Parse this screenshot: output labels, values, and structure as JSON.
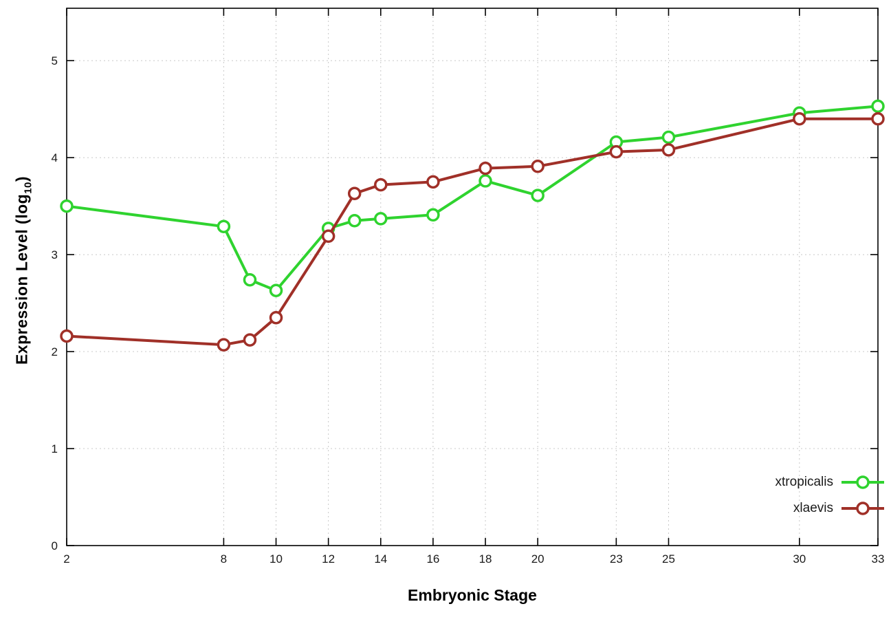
{
  "chart_data": {
    "type": "line",
    "title": "",
    "xlabel": "Embryonic Stage",
    "ylabel_main": "Expression Level (log",
    "ylabel_sub": "10",
    "ylabel_end": ")",
    "x": [
      2,
      8,
      9,
      10,
      12,
      13,
      14,
      16,
      18,
      20,
      23,
      25,
      30,
      33
    ],
    "xticks": [
      2,
      8,
      10,
      12,
      14,
      16,
      18,
      20,
      23,
      25,
      30,
      33
    ],
    "yticks": [
      0,
      1,
      2,
      3,
      4,
      5
    ],
    "xlim": [
      2,
      33
    ],
    "ylim": [
      0,
      5.54
    ],
    "grid": true,
    "legend_position": "bottom-right",
    "colors": {
      "grid": "#c8c8c8",
      "border": "#000000",
      "tick_text": "#1a1a1a"
    },
    "series": [
      {
        "name": "xtropicalis",
        "color": "#2fd32f",
        "values": [
          3.5,
          3.29,
          2.74,
          2.63,
          3.27,
          3.35,
          3.37,
          3.41,
          3.76,
          3.61,
          4.16,
          4.21,
          4.46,
          4.53
        ]
      },
      {
        "name": "xlaevis",
        "color": "#a03028",
        "values": [
          2.16,
          2.07,
          2.12,
          2.35,
          3.19,
          3.63,
          3.72,
          3.75,
          3.89,
          3.91,
          4.06,
          4.08,
          4.4,
          4.4
        ]
      }
    ]
  }
}
